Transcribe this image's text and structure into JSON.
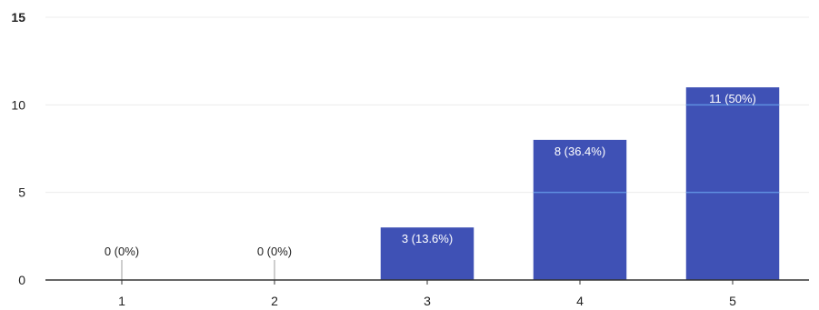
{
  "chart_data": {
    "type": "bar",
    "categories": [
      "1",
      "2",
      "3",
      "4",
      "5"
    ],
    "values": [
      0,
      0,
      3,
      8,
      11
    ],
    "data_labels": [
      "0 (0%)",
      "0 (0%)",
      "3 (13.6%)",
      "8 (36.4%)",
      "11 (50%)"
    ],
    "y_ticks": [
      "0",
      "5",
      "10",
      "15"
    ],
    "ylim": [
      0,
      15
    ],
    "title": "",
    "xlabel": "",
    "ylabel": "",
    "grid": true,
    "legend": "none",
    "colors": {
      "bar": "#3f51b5",
      "bar_label_text": "#ffffff",
      "outside_label_text": "#222222",
      "axis": "#333333",
      "grid": "#ececec"
    }
  }
}
